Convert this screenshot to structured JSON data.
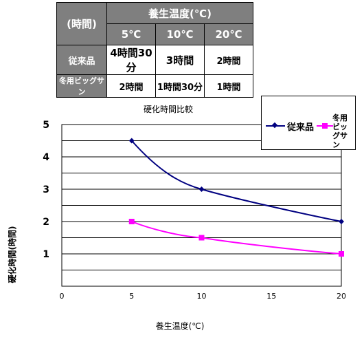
{
  "table": {
    "corner": "(時間)",
    "group_header": "養生温度(℃)",
    "temps": [
      "5℃",
      "10℃",
      "20℃"
    ],
    "rows": [
      {
        "label": "従来品",
        "cells": [
          "4時間30分",
          "3時間",
          "2時間"
        ]
      },
      {
        "label": "冬用ビッグサン",
        "cells": [
          "2時間",
          "1時間30分",
          "1時間"
        ]
      }
    ]
  },
  "chart_data": {
    "type": "line",
    "title": "硬化時間比較",
    "xlabel": "養生温度(℃)",
    "ylabel": "硬化時間(時間)",
    "xlim": [
      0,
      20
    ],
    "ylim": [
      0,
      5
    ],
    "x_ticks": [
      "0",
      "5",
      "10",
      "15",
      "20"
    ],
    "y_ticks": [
      "1",
      "2",
      "3",
      "4",
      "5"
    ],
    "grid": true,
    "legend_position": "top-right",
    "series": [
      {
        "name": "従来品",
        "color": "#000080",
        "marker": "diamond",
        "x": [
          5,
          10,
          20
        ],
        "y": [
          4.5,
          3,
          2
        ]
      },
      {
        "name": "冬用ビッグサン",
        "color": "#ff00ff",
        "marker": "square",
        "x": [
          5,
          10,
          20
        ],
        "y": [
          2,
          1.5,
          1
        ]
      }
    ]
  }
}
